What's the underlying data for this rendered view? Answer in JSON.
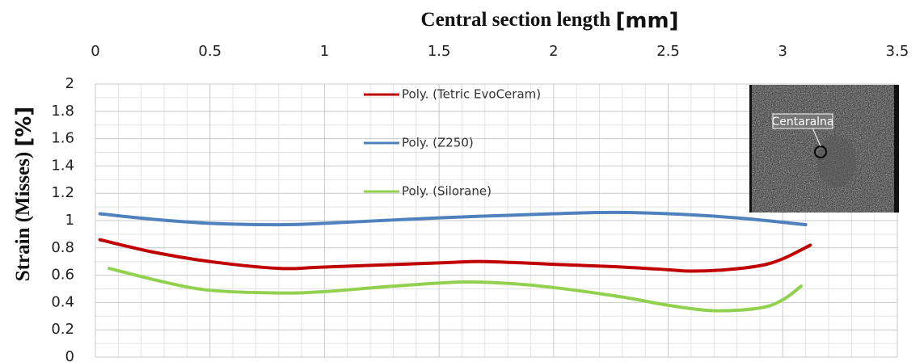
{
  "chart_data": {
    "type": "line",
    "x_label": "Central section length",
    "x_unit": "[mm]",
    "y_label": "Strain (Misses)",
    "y_unit": "[%]",
    "xlim": [
      0,
      3.5
    ],
    "xticks": [
      0,
      0.5,
      1,
      1.5,
      2,
      2.5,
      3,
      3.5
    ],
    "ylim": [
      0,
      2
    ],
    "yticks": [
      0,
      0.2,
      0.4,
      0.6,
      0.8,
      1,
      1.2,
      1.4,
      1.6,
      1.8,
      2
    ],
    "grid": true,
    "inset_label": "Centaralna",
    "series": [
      {
        "name": "Poly. (Tetric EvoCeram)",
        "color": "#c00000",
        "x": [
          0.02,
          0.25,
          0.5,
          0.8,
          1.0,
          1.5,
          1.7,
          2.0,
          2.3,
          2.5,
          2.6,
          2.75,
          2.9,
          3.0,
          3.12
        ],
        "values": [
          0.86,
          0.77,
          0.7,
          0.65,
          0.66,
          0.69,
          0.7,
          0.68,
          0.66,
          0.64,
          0.63,
          0.64,
          0.67,
          0.72,
          0.82
        ]
      },
      {
        "name": "Poly. (Z250)",
        "color": "#4f81bd",
        "x": [
          0.02,
          0.25,
          0.5,
          0.8,
          1.0,
          1.5,
          2.0,
          2.25,
          2.5,
          2.8,
          3.1
        ],
        "values": [
          1.05,
          1.01,
          0.98,
          0.97,
          0.98,
          1.02,
          1.05,
          1.06,
          1.05,
          1.02,
          0.97
        ]
      },
      {
        "name": "Poly. (Silorane)",
        "color": "#92d050",
        "x": [
          0.06,
          0.3,
          0.5,
          0.8,
          1.0,
          1.3,
          1.6,
          1.8,
          2.0,
          2.3,
          2.5,
          2.7,
          2.9,
          3.0,
          3.08
        ],
        "values": [
          0.65,
          0.55,
          0.49,
          0.47,
          0.48,
          0.52,
          0.55,
          0.54,
          0.51,
          0.44,
          0.38,
          0.34,
          0.36,
          0.42,
          0.52
        ]
      }
    ]
  }
}
